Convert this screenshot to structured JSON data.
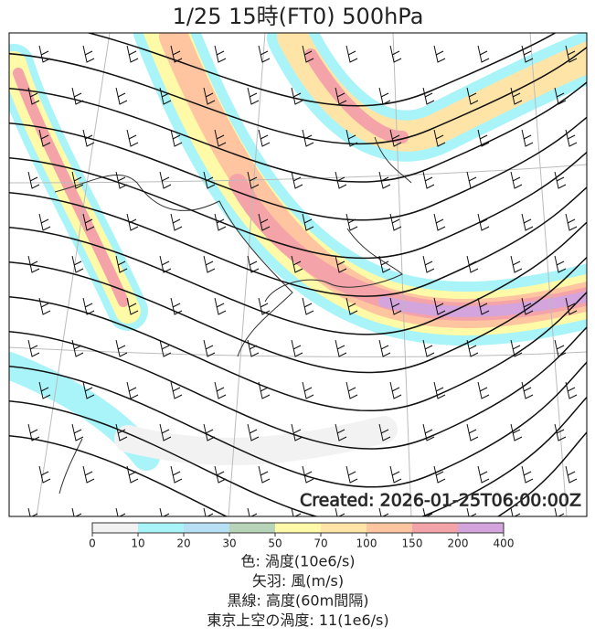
{
  "title": "1/25  15時(FT0)    500hPa",
  "created": "Created: 2026-01-25T06:00:00Z",
  "colorbar": {
    "ticks": [
      "0",
      "10",
      "20",
      "30",
      "50",
      "70",
      "100",
      "150",
      "200",
      "400"
    ],
    "colors": [
      "#f2f2f2",
      "#a8f4f8",
      "#b8e0f4",
      "#b8d4b8",
      "#fffaa8",
      "#ffe4a8",
      "#ffc4a0",
      "#f4a4a8",
      "#d4a4dc"
    ]
  },
  "legend": [
    "色: 渦度(10e6/s)",
    "矢羽: 風(m/s)",
    "黒線: 高度(60m間隔)",
    "東京上空の渦度: 11(1e6/s)"
  ]
}
